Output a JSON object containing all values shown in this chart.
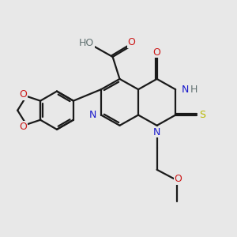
{
  "bg_color": "#e8e8e8",
  "bond_color": "#1a1a1a",
  "bond_width": 1.6,
  "atom_colors": {
    "N": "#1818cc",
    "O": "#cc1818",
    "S": "#b8b800",
    "H": "#607070"
  },
  "font_size": 9.0
}
